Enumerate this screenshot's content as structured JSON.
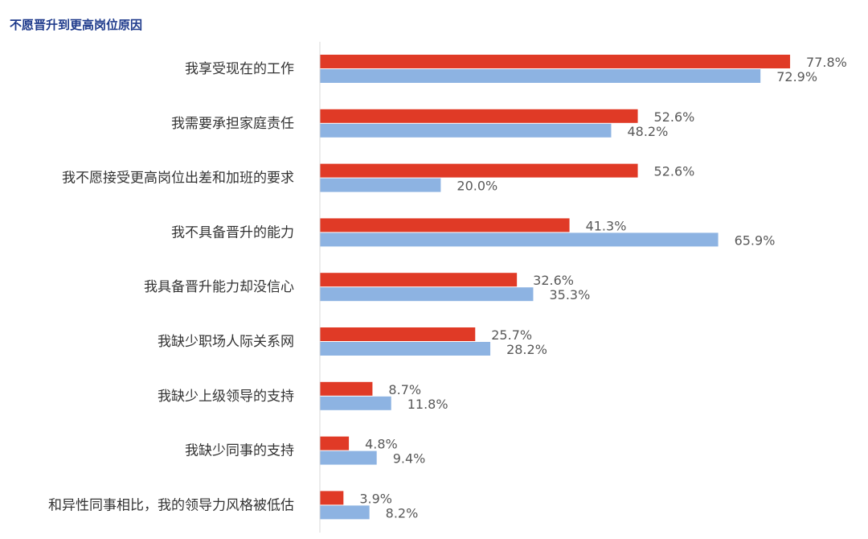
{
  "chart_data": {
    "type": "bar",
    "orientation": "horizontal",
    "title": "不愿晋升到更高岗位原因",
    "categories": [
      "我享受现在的工作",
      "我需要承担家庭责任",
      "我不愿接受更高岗位出差和加班的要求",
      "我不具备晋升的能力",
      "我具备晋升能力却没信心",
      "我缺少职场人际关系网",
      "我缺少上级领导的支持",
      "我缺少同事的支持",
      "和异性同事相比，我的领导力风格被低估"
    ],
    "series": [
      {
        "color": "#e03a26",
        "values": [
          77.8,
          52.6,
          52.6,
          41.3,
          32.6,
          25.7,
          8.7,
          4.8,
          3.9
        ],
        "labels": [
          "77.8%",
          "52.6%",
          "52.6%",
          "41.3%",
          "32.6%",
          "25.7%",
          "8.7%",
          "4.8%",
          "3.9%"
        ]
      },
      {
        "color": "#8db3e2",
        "values": [
          72.9,
          48.2,
          20.0,
          65.9,
          35.3,
          28.2,
          11.8,
          9.4,
          8.2
        ],
        "labels": [
          "72.9%",
          "48.2%",
          "20.0%",
          "65.9%",
          "35.3%",
          "28.2%",
          "11.8%",
          "9.4%",
          "8.2%"
        ]
      }
    ],
    "xlim": [
      0,
      100
    ],
    "grid": false,
    "legend": "none"
  }
}
